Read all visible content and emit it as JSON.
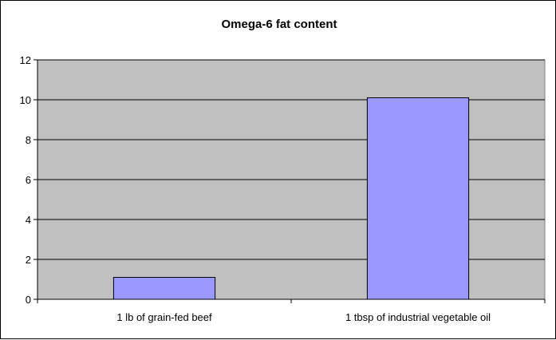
{
  "colors": {
    "plot_background": "#c0c0c0",
    "bar_fill": "#9999ff",
    "gridline": "#000000",
    "axis": "#000000"
  },
  "chart_data": {
    "type": "bar",
    "title": "Omega-6 fat content",
    "xlabel": "",
    "ylabel": "",
    "categories": [
      "1 lb of grain-fed beef",
      "1 tbsp of industrial vegetable oil"
    ],
    "values": [
      1.1,
      10.1
    ],
    "ylim": [
      0,
      12
    ],
    "yticks": [
      "0",
      "2",
      "4",
      "6",
      "8",
      "10",
      "12"
    ],
    "grid": true,
    "legend": "none"
  }
}
